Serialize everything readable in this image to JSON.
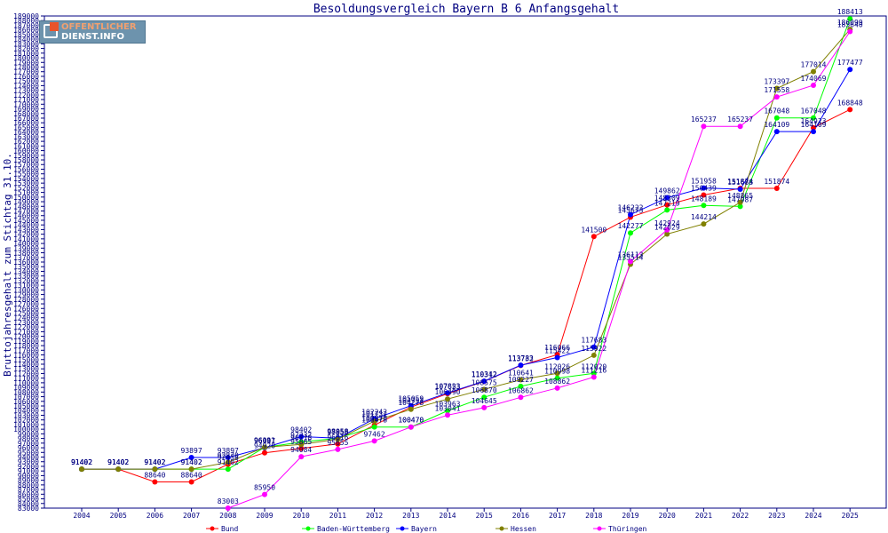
{
  "logo": {
    "line1": "OFFENTLICHER",
    "line2": "DIENST.INFO"
  },
  "chart_data": {
    "type": "line",
    "title": "Besoldungsvergleich Bayern B 6 Anfangsgehalt",
    "xlabel": "",
    "ylabel": "Bruttojahresgehalt zum Stichtag 31.10.",
    "ylim": [
      83000,
      189000
    ],
    "ytick_step": 1000,
    "grid": false,
    "legend_position": "bottom",
    "x": [
      "2004",
      "2005",
      "2006",
      "2007",
      "2008",
      "2009",
      "2010",
      "2011",
      "2012",
      "2013",
      "2014",
      "2015",
      "2016",
      "2017",
      "2018",
      "2019",
      "2020",
      "2021",
      "2022",
      "2023",
      "2024",
      "2025"
    ],
    "series": [
      {
        "name": "Bund",
        "color": "#ff0000",
        "values": [
          91402,
          91402,
          88640,
          88640,
          92458,
          94920,
          95865,
          96816,
          100878,
          104751,
          107653,
          110312,
          113732,
          116066,
          141500,
          145673,
          148309,
          150439,
          151874,
          151874,
          164923,
          168848
        ]
      },
      {
        "name": "Baden-Württemberg",
        "color": "#00ff00",
        "values": [
          91402,
          91402,
          91402,
          91402,
          91402,
          96091,
          97232,
          98058,
          100478,
          100470,
          103963,
          106870,
          109227,
          110998,
          112020,
          142277,
          147219,
          148189,
          147987,
          167048,
          167048,
          188413
        ]
      },
      {
        "name": "Bayern",
        "color": "#0000ff",
        "values": [
          91402,
          91402,
          91402,
          93897,
          93897,
          96007,
          98402,
          98058,
          102242,
          105059,
          107823,
          110342,
          113783,
          115422,
          117683,
          146222,
          149862,
          151958,
          151688,
          164109,
          164109,
          177477
        ]
      },
      {
        "name": "Hessen",
        "color": "#808000",
        "values": [
          91402,
          91402,
          91402,
          91402,
          92870,
          96111,
          96718,
          97850,
          101732,
          104278,
          106490,
          108575,
          110641,
          112026,
          115922,
          135514,
          142029,
          144214,
          148865,
          173397,
          177014,
          186099
        ]
      },
      {
        "name": "Thüringen",
        "color": "#ff00ff",
        "values": [
          null,
          null,
          null,
          null,
          83003,
          85950,
          94084,
          95655,
          97462,
          100470,
          103041,
          104645,
          106862,
          108862,
          111216,
          136113,
          142924,
          165237,
          165237,
          171558,
          174069,
          185640
        ]
      }
    ]
  }
}
